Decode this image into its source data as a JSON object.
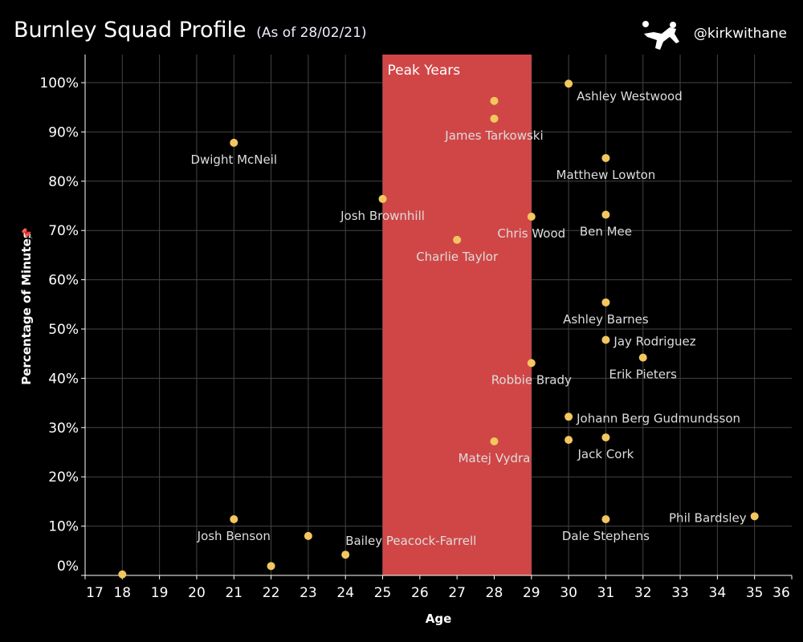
{
  "header": {
    "title": "Burnley Squad Profile",
    "subtitle": "(As of 28/02/21)",
    "handle": "@kirkwithane"
  },
  "chart_data": {
    "type": "scatter",
    "title": "Burnley Squad Profile",
    "xlabel": "Age",
    "ylabel": "Percentage of Minutes",
    "xlim": [
      17,
      36
    ],
    "ylim": [
      0,
      105.7
    ],
    "xticks": [
      "17",
      "18",
      "19",
      "20",
      "21",
      "22",
      "23",
      "24",
      "25",
      "26",
      "27",
      "28",
      "29",
      "30",
      "31",
      "32",
      "33",
      "34",
      "35",
      "36"
    ],
    "yticks": [
      "0%",
      "10%",
      "20%",
      "30%",
      "40%",
      "50%",
      "60%",
      "70%",
      "80%",
      "90%",
      "100%"
    ],
    "grid": true,
    "band": {
      "label": "Peak Years",
      "from": 25,
      "to": 29,
      "color": "#d04646"
    },
    "point_color": "#f3c75f",
    "points": [
      {
        "name": "",
        "age": 18,
        "pct": 0.2
      },
      {
        "name": "Josh Benson",
        "age": 21,
        "pct": 11.4
      },
      {
        "name": "Dwight McNeil",
        "age": 21,
        "pct": 87.8
      },
      {
        "name": "",
        "age": 22,
        "pct": 1.9
      },
      {
        "name": "",
        "age": 23,
        "pct": 8.0
      },
      {
        "name": "Bailey Peacock-Farrell",
        "age": 24,
        "pct": 4.2
      },
      {
        "name": "Josh Brownhill",
        "age": 25,
        "pct": 76.4
      },
      {
        "name": "Charlie Taylor",
        "age": 27,
        "pct": 68.1
      },
      {
        "name": "",
        "age": 28,
        "pct": 96.3
      },
      {
        "name": "James Tarkowski",
        "age": 28,
        "pct": 92.7
      },
      {
        "name": "Matej Vydra",
        "age": 28,
        "pct": 27.2
      },
      {
        "name": "Chris Wood",
        "age": 29,
        "pct": 72.8
      },
      {
        "name": "Robbie Brady",
        "age": 29,
        "pct": 43.1
      },
      {
        "name": "Ashley Westwood",
        "age": 30,
        "pct": 99.8
      },
      {
        "name": "Johann Berg Gudmundsson",
        "age": 30,
        "pct": 32.2
      },
      {
        "name": "",
        "age": 30,
        "pct": 27.5
      },
      {
        "name": "Matthew Lowton",
        "age": 31,
        "pct": 84.7
      },
      {
        "name": "Ben Mee",
        "age": 31,
        "pct": 73.2
      },
      {
        "name": "Ashley Barnes",
        "age": 31,
        "pct": 55.4
      },
      {
        "name": "Jay Rodriguez",
        "age": 31,
        "pct": 47.8
      },
      {
        "name": "Jack Cork",
        "age": 31,
        "pct": 28.0
      },
      {
        "name": "Dale Stephens",
        "age": 31,
        "pct": 11.4
      },
      {
        "name": "Erik Pieters",
        "age": 32,
        "pct": 44.2
      },
      {
        "name": "Phil Bardsley",
        "age": 35,
        "pct": 12.0
      }
    ]
  }
}
